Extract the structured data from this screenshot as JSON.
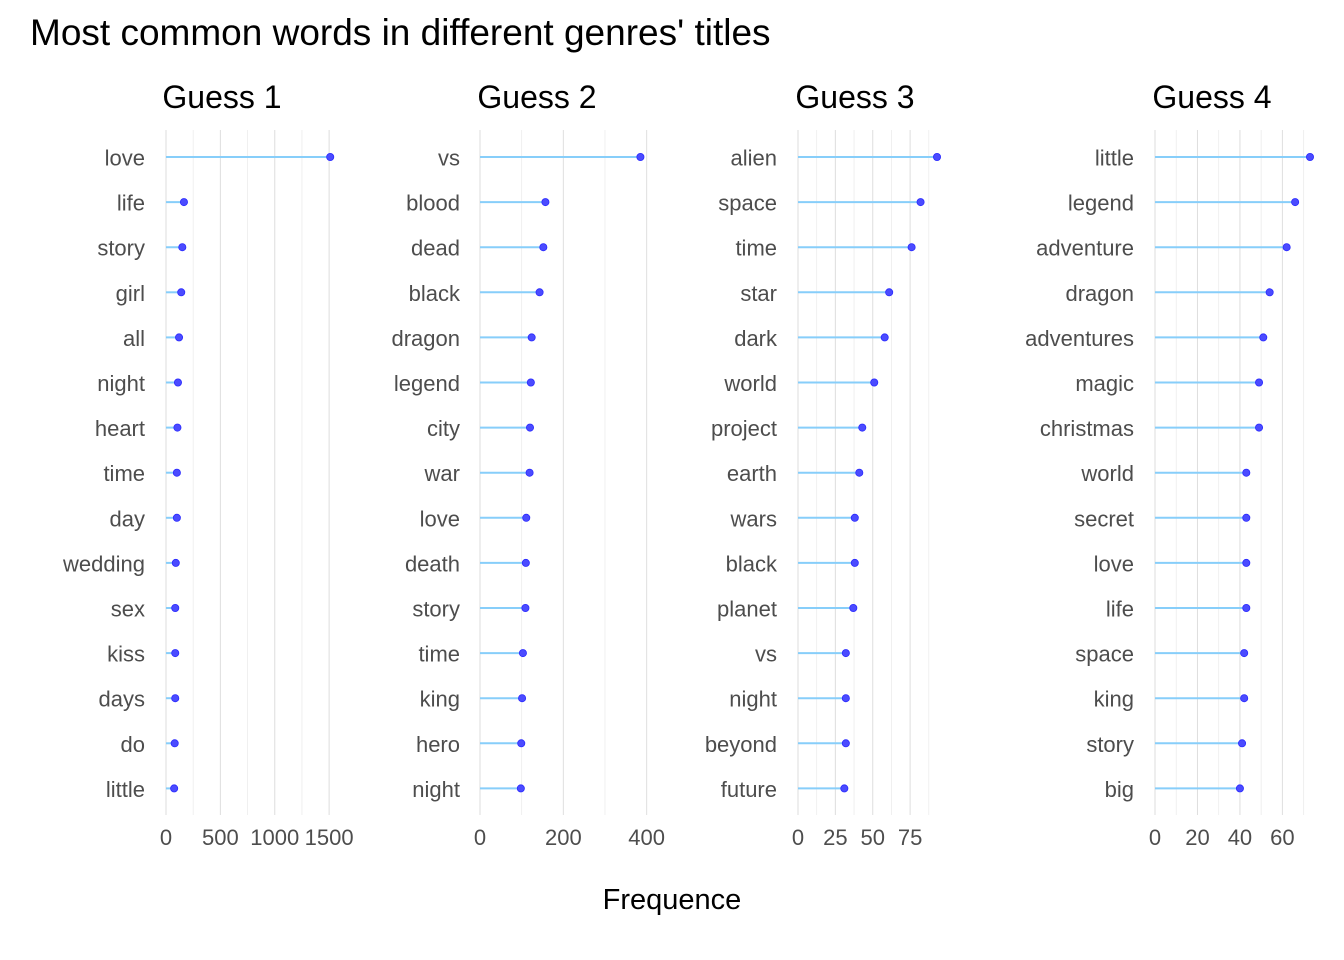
{
  "chart_data": {
    "type": "lollipop",
    "title": "Most common words in different genres' titles",
    "xlabel": "Frequence",
    "ylabel": "",
    "grid": true,
    "legend": "none",
    "colors": {
      "segment": "#87cefa",
      "point": "#4b4bff",
      "grid": "#dedede"
    },
    "facets": [
      {
        "name": "Guess 1",
        "xlim": [
          0,
          1600
        ],
        "ticks": [
          0,
          500,
          1000,
          1500
        ],
        "tick_labels": [
          "0",
          "500",
          "1000",
          "1500"
        ],
        "words": [
          "love",
          "life",
          "story",
          "girl",
          "all",
          "night",
          "heart",
          "time",
          "day",
          "wedding",
          "sex",
          "kiss",
          "days",
          "do",
          "little"
        ],
        "values": [
          1510,
          165,
          150,
          140,
          120,
          110,
          105,
          100,
          100,
          90,
          85,
          85,
          85,
          80,
          75
        ]
      },
      {
        "name": "Guess 2",
        "xlim": [
          0,
          420
        ],
        "ticks": [
          0,
          200,
          400
        ],
        "tick_labels": [
          "0",
          "200",
          "400"
        ],
        "words": [
          "vs",
          "blood",
          "dead",
          "black",
          "dragon",
          "legend",
          "city",
          "war",
          "love",
          "death",
          "story",
          "time",
          "king",
          "hero",
          "night"
        ],
        "values": [
          385,
          157,
          152,
          143,
          124,
          122,
          120,
          119,
          111,
          110,
          109,
          103,
          101,
          99,
          98
        ]
      },
      {
        "name": "Guess 3",
        "xlim": [
          0,
          95
        ],
        "ticks": [
          0,
          25,
          50,
          75
        ],
        "tick_labels": [
          "0",
          "25",
          "50",
          "75"
        ],
        "words": [
          "alien",
          "space",
          "time",
          "star",
          "dark",
          "world",
          "project",
          "earth",
          "wars",
          "black",
          "planet",
          "vs",
          "night",
          "beyond",
          "future"
        ],
        "values": [
          93,
          82,
          76,
          61,
          58,
          51,
          43,
          41,
          38,
          38,
          37,
          32,
          32,
          32,
          31
        ]
      },
      {
        "name": "Guess 4",
        "xlim": [
          0,
          73
        ],
        "ticks": [
          0,
          20,
          40,
          60
        ],
        "tick_labels": [
          "0",
          "20",
          "40",
          "60"
        ],
        "words": [
          "little",
          "legend",
          "adventure",
          "dragon",
          "adventures",
          "magic",
          "christmas",
          "world",
          "secret",
          "love",
          "life",
          "space",
          "king",
          "story",
          "big"
        ],
        "values": [
          73,
          66,
          62,
          54,
          51,
          49,
          49,
          43,
          43,
          43,
          43,
          42,
          42,
          41,
          40
        ]
      }
    ]
  }
}
